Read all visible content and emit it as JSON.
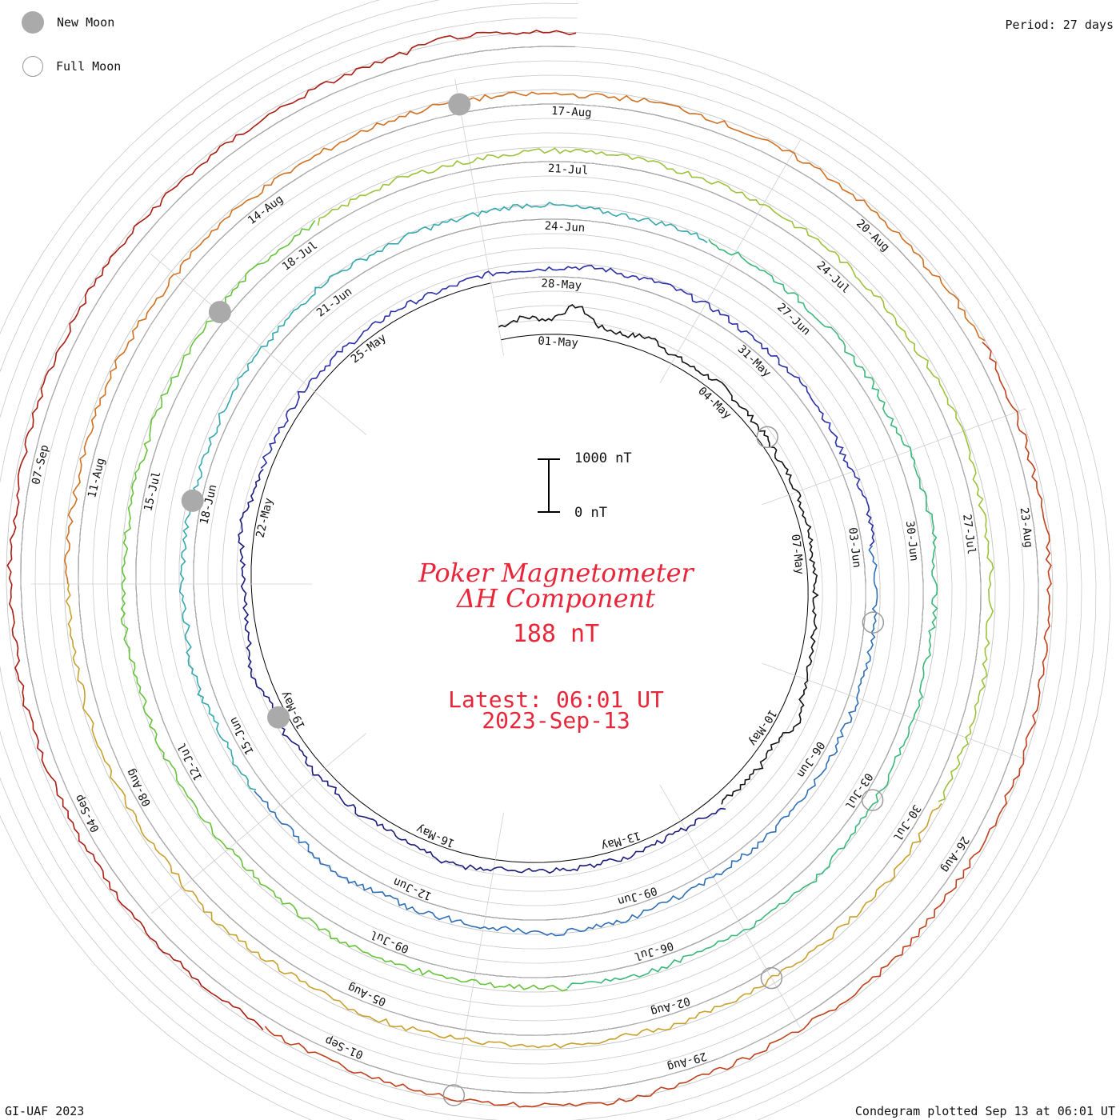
{
  "legend": {
    "new_moon": "New Moon",
    "full_moon": "Full Moon"
  },
  "period_label": "Period: 27 days",
  "footer_left": "GI-UAF 2023",
  "footer_right": "Condegram plotted Sep 13 at 06:01 UT",
  "title": {
    "line1": "Poker Magnetometer",
    "line2": "ΔH Component",
    "value": "188 nT",
    "latest": "Latest: 06:01 UT",
    "date": "2023-Sep-13"
  },
  "scale": {
    "top_label": "1000 nT",
    "bottom_label": "0 nT"
  },
  "colors": {
    "title": "#e8263a",
    "grid": "#c8c8c8",
    "baseline": "#000000",
    "moon_new": "#aaaaaa",
    "moon_full": "#999999"
  },
  "chart_data": {
    "type": "line",
    "layout": "spiral condegram",
    "period_days": 27,
    "start_date": "2023-04-30",
    "end_date": "2023-09-13",
    "value_unit": "nT",
    "scale_range": [
      0,
      1000
    ],
    "current_value": 188,
    "date_labels": [
      "01-May",
      "04-May",
      "07-May",
      "10-May",
      "13-May",
      "16-May",
      "19-May",
      "22-May",
      "25-May",
      "28-May",
      "31-May",
      "03-Jun",
      "06-Jun",
      "09-Jun",
      "12-Jun",
      "15-Jun",
      "18-Jun",
      "21-Jun",
      "24-Jun",
      "27-Jun",
      "30-Jun",
      "03-Jul",
      "06-Jul",
      "09-Jul",
      "12-Jul",
      "15-Jul",
      "18-Jul",
      "21-Jul",
      "24-Jul",
      "27-Jul",
      "30-Jul",
      "02-Aug",
      "05-Aug",
      "08-Aug",
      "11-Aug",
      "14-Aug",
      "17-Aug",
      "20-Aug",
      "23-Aug",
      "26-Aug",
      "29-Aug",
      "01-Sep",
      "04-Sep",
      "07-Sep"
    ],
    "new_moons": [
      "2023-05-19",
      "2023-06-18",
      "2023-07-17",
      "2023-08-16"
    ],
    "full_moons": [
      "2023-05-05",
      "2023-06-04",
      "2023-07-03",
      "2023-08-01",
      "2023-08-31"
    ],
    "series": [
      {
        "color": "#111111",
        "values": [
          180,
          260,
          200,
          420,
          150,
          130,
          210,
          120,
          100,
          140,
          120,
          110,
          100,
          90,
          120,
          110,
          130,
          90,
          100,
          110,
          120,
          130,
          180,
          300,
          140,
          180,
          150,
          120
        ]
      },
      {
        "color": "#1a1a7a",
        "values": [
          230,
          140,
          110,
          120,
          130,
          115,
          120,
          110,
          120,
          130,
          200,
          160,
          130,
          120,
          140,
          110,
          150,
          120,
          170,
          130,
          230,
          140,
          110,
          120,
          130,
          200,
          120,
          130
        ]
      },
      {
        "color": "#2a2fa6",
        "values": [
          130,
          110,
          120,
          150,
          120,
          110,
          100,
          120,
          100,
          90,
          130,
          120,
          110,
          140,
          160,
          140,
          170,
          150,
          150,
          120,
          130,
          140,
          160,
          120,
          110,
          160,
          180,
          130
        ]
      },
      {
        "color": "#2f6fb5",
        "values": [
          120,
          150,
          130,
          140,
          110,
          120,
          110,
          130,
          120,
          110,
          100,
          90,
          100,
          110,
          120,
          180,
          160,
          200,
          150,
          140,
          130,
          160,
          130,
          180,
          190,
          150,
          140,
          120
        ]
      },
      {
        "color": "#36a8ad",
        "values": [
          160,
          160,
          130,
          180,
          200,
          140,
          170,
          150,
          140,
          110,
          130,
          120,
          160,
          140,
          130,
          160,
          200,
          170,
          150,
          180,
          160,
          190,
          210,
          180,
          150,
          140,
          170,
          160
        ]
      },
      {
        "color": "#3ab87a",
        "values": [
          150,
          170,
          160,
          140,
          140,
          130,
          150,
          120,
          180,
          190,
          210,
          170,
          160,
          140,
          130,
          170,
          140,
          150,
          160,
          170,
          190,
          160,
          150,
          140,
          130,
          150,
          140,
          130
        ]
      },
      {
        "color": "#66c33a",
        "values": [
          160,
          140,
          130,
          120,
          150,
          170,
          180,
          160,
          140,
          130,
          150,
          140,
          170,
          180,
          160,
          190,
          200,
          180,
          150,
          160,
          140,
          170,
          150,
          140,
          160,
          170,
          150,
          140
        ]
      },
      {
        "color": "#9cc23a",
        "values": [
          130,
          140,
          150,
          130,
          120,
          140,
          150,
          160,
          140,
          130,
          150,
          160,
          140,
          150,
          130,
          140,
          120,
          150,
          160,
          140,
          130,
          150,
          140,
          130,
          150,
          160,
          140,
          150
        ]
      },
      {
        "color": "#c8a02c",
        "values": [
          140,
          150,
          160,
          150,
          130,
          120,
          150,
          140,
          160,
          130,
          140,
          150,
          130,
          140,
          150,
          160,
          140,
          130,
          150,
          160,
          140,
          130,
          150,
          140,
          160,
          150,
          140,
          150
        ]
      },
      {
        "color": "#d07020",
        "values": [
          150,
          160,
          140,
          130,
          140,
          150,
          130,
          120,
          160,
          150,
          140,
          130,
          150,
          160,
          170,
          150,
          140,
          130,
          160,
          170,
          150,
          140,
          160,
          150,
          140,
          130,
          150,
          160
        ]
      },
      {
        "color": "#c0401c",
        "values": [
          160,
          150,
          140,
          130,
          160,
          150,
          140,
          150,
          160,
          170,
          150,
          140,
          130,
          150,
          160,
          140,
          130,
          150,
          160,
          180,
          200,
          190,
          170,
          160,
          150,
          160,
          140,
          150
        ]
      },
      {
        "color": "#a81c12",
        "values": [
          150,
          140,
          160,
          150,
          140,
          130,
          150,
          160,
          140,
          150,
          130,
          140,
          160,
          150,
          170,
          160,
          150,
          140,
          150,
          160,
          170,
          260,
          180,
          200
        ]
      }
    ]
  }
}
